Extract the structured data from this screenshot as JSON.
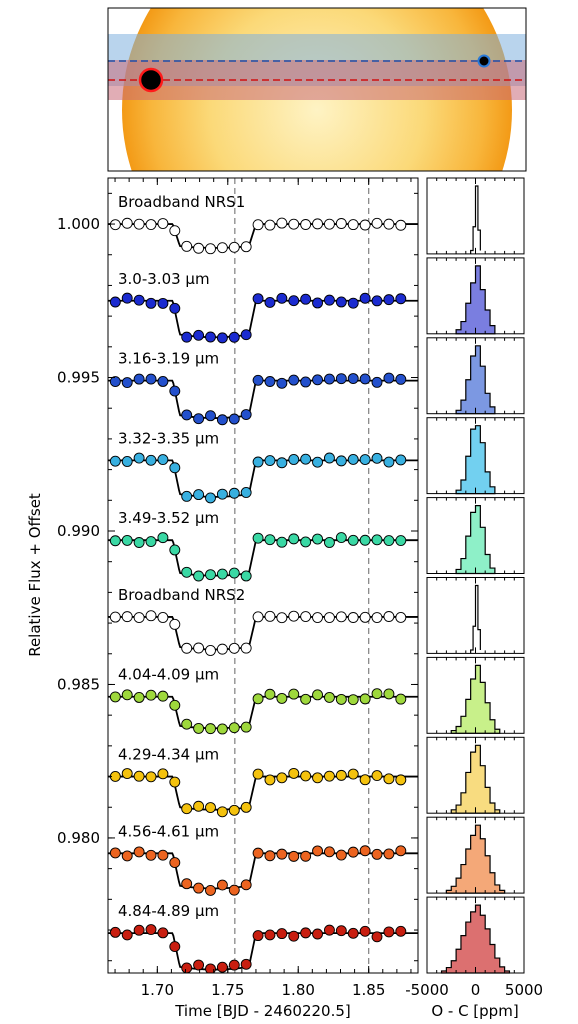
{
  "chart_data": [
    {
      "type": "diagram",
      "panel": "stellar-disk-schematic",
      "paths": [
        {
          "color": "#1f4fa8",
          "style": "dashed",
          "band": "#7fb1de"
        },
        {
          "color": "#d01010",
          "style": "dashed",
          "band": "#c86a78"
        }
      ],
      "colors": {
        "star_center": "#fef3c4",
        "star_limb": "#f39a16"
      }
    },
    {
      "type": "scatter",
      "panel": "light-curves",
      "xlabel": "Time [BJD - 2460220.5]",
      "ylabel": "Relative Flux + Offset",
      "xlim": [
        1.665,
        1.885
      ],
      "ylim": [
        0.9756,
        1.0015
      ],
      "xticks": [
        "1.70",
        "1.75",
        "1.80",
        "1.85"
      ],
      "yticks": [
        "0.980",
        "0.985",
        "0.990",
        "0.995",
        "1.000"
      ],
      "vlines": [
        1.755,
        1.85
      ],
      "transit": {
        "ingress_start": 1.711,
        "ingress_end": 1.716,
        "egress_start": 1.765,
        "egress_end": 1.77
      },
      "grid": false,
      "series": [
        {
          "name": "Broadband NRS1",
          "color": "#ffffff",
          "baseline": 1.0,
          "depth": 0.00072,
          "scatter": 4e-05
        },
        {
          "name": "3.0-3.03 µm",
          "color": "#1b2bd0",
          "baseline": 0.9975,
          "depth": 0.0011,
          "scatter": 9e-05
        },
        {
          "name": "3.16-3.19 µm",
          "color": "#2350cc",
          "baseline": 0.9949,
          "depth": 0.00113,
          "scatter": 9e-05
        },
        {
          "name": "3.32-3.35 µm",
          "color": "#38b0e0",
          "baseline": 0.9923,
          "depth": 0.0011,
          "scatter": 9e-05
        },
        {
          "name": "3.49-3.52 µm",
          "color": "#3ad8a4",
          "baseline": 0.9897,
          "depth": 0.00107,
          "scatter": 9e-05
        },
        {
          "name": "Broadband NRS2",
          "color": "#ffffff",
          "baseline": 0.9872,
          "depth": 0.00098,
          "scatter": 4e-05
        },
        {
          "name": "4.04-4.09 µm",
          "color": "#9ed83c",
          "baseline": 0.9846,
          "depth": 0.00095,
          "scatter": 0.00011
        },
        {
          "name": "4.29-4.34 µm",
          "color": "#f4c20e",
          "baseline": 0.982,
          "depth": 0.001,
          "scatter": 0.00011
        },
        {
          "name": "4.56-4.61 µm",
          "color": "#ec6420",
          "baseline": 0.9795,
          "depth": 0.00106,
          "scatter": 0.00011
        },
        {
          "name": "4.84-4.89 µm",
          "color": "#c81e10",
          "baseline": 0.9769,
          "depth": 0.0011,
          "scatter": 0.00013
        }
      ]
    },
    {
      "type": "histogram",
      "panel": "residuals",
      "xlabel": "O - C [ppm]",
      "xlim": [
        -5000,
        5000
      ],
      "xticks": [
        "-5000",
        "0",
        "5000"
      ],
      "series": [
        {
          "color": "#ffffff",
          "bins": [
            -500,
            -250,
            0,
            250,
            500
          ],
          "counts": [
            0.05,
            0.4,
            1.0,
            0.35,
            0.05
          ]
        },
        {
          "color": "#7a7ee0",
          "bins": [
            -2000,
            -1500,
            -1000,
            -500,
            0,
            500,
            1000,
            1500,
            2000
          ],
          "counts": [
            0.06,
            0.18,
            0.45,
            0.75,
            1.0,
            0.65,
            0.35,
            0.12
          ]
        },
        {
          "color": "#7c98e2",
          "bins": [
            -2000,
            -1500,
            -1000,
            -500,
            0,
            500,
            1000,
            1500,
            2000
          ],
          "counts": [
            0.05,
            0.2,
            0.5,
            0.85,
            1.0,
            0.7,
            0.3,
            0.1
          ]
        },
        {
          "color": "#72d0f0",
          "bins": [
            -2000,
            -1500,
            -1000,
            -500,
            0,
            500,
            1000,
            1500,
            2000
          ],
          "counts": [
            0.05,
            0.2,
            0.55,
            0.95,
            1.0,
            0.75,
            0.32,
            0.1
          ]
        },
        {
          "color": "#8ef0c8",
          "bins": [
            -2000,
            -1500,
            -1000,
            -500,
            0,
            500,
            1000,
            1500,
            2000
          ],
          "counts": [
            0.06,
            0.22,
            0.55,
            0.9,
            1.0,
            0.68,
            0.28,
            0.08
          ]
        },
        {
          "color": "#ffffff",
          "bins": [
            -500,
            -250,
            0,
            250,
            500
          ],
          "counts": [
            0.05,
            0.4,
            1.0,
            0.35,
            0.05
          ]
        },
        {
          "color": "#c8f08a",
          "bins": [
            -2500,
            -2000,
            -1500,
            -1000,
            -500,
            0,
            500,
            1000,
            1500,
            2000,
            2500
          ],
          "counts": [
            0.04,
            0.1,
            0.25,
            0.5,
            0.8,
            1.0,
            0.75,
            0.45,
            0.2,
            0.06
          ]
        },
        {
          "color": "#f8dc80",
          "bins": [
            -2500,
            -2000,
            -1500,
            -1000,
            -500,
            0,
            500,
            1000,
            1500,
            2000,
            2500
          ],
          "counts": [
            0.05,
            0.12,
            0.3,
            0.6,
            0.9,
            1.0,
            0.7,
            0.38,
            0.15,
            0.05
          ]
        },
        {
          "color": "#f4a878",
          "bins": [
            -3000,
            -2500,
            -2000,
            -1500,
            -1000,
            -500,
            0,
            500,
            1000,
            1500,
            2000,
            2500,
            3000
          ],
          "counts": [
            0.04,
            0.1,
            0.22,
            0.42,
            0.65,
            0.85,
            1.0,
            0.8,
            0.55,
            0.3,
            0.12,
            0.04
          ]
        },
        {
          "color": "#dc7070",
          "bins": [
            -3500,
            -3000,
            -2500,
            -2000,
            -1500,
            -1000,
            -500,
            0,
            500,
            1000,
            1500,
            2000,
            2500,
            3000,
            3500
          ],
          "counts": [
            0.03,
            0.08,
            0.18,
            0.35,
            0.55,
            0.75,
            0.9,
            1.0,
            0.85,
            0.65,
            0.42,
            0.22,
            0.09,
            0.03
          ]
        }
      ]
    }
  ]
}
